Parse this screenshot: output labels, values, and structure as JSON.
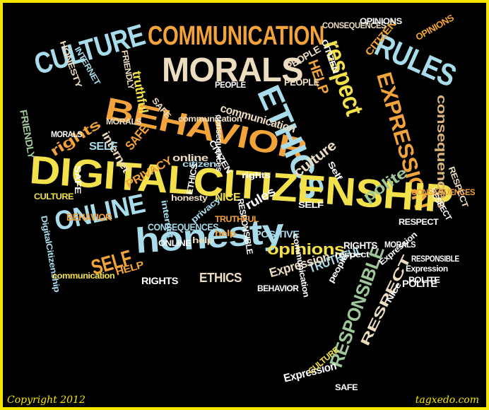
{
  "colors": {
    "background": "#000000",
    "border": "#f5e600",
    "yellow": "#f2e14a",
    "orange": "#f2a33a",
    "cream": "#ecdcc0",
    "lightblue": "#a8dcea",
    "green": "#9fc89a",
    "tan": "#d9b47a",
    "white": "#ffffff"
  },
  "footer": {
    "copyright": "Copyright 2012",
    "site": "tagxedo.com"
  },
  "words": [
    {
      "text": "COMMUNICATION",
      "color": "orange"
    },
    {
      "text": "CULTURE",
      "color": "lightblue"
    },
    {
      "text": "MORALS",
      "color": "cream"
    },
    {
      "text": "RULES",
      "color": "lightblue"
    },
    {
      "text": "respect",
      "color": "yellow"
    },
    {
      "text": "BEHAVIOR",
      "color": "orange"
    },
    {
      "text": "ETHICS",
      "color": "lightblue"
    },
    {
      "text": "EXPRESSION",
      "color": "orange"
    },
    {
      "text": "DIGITALCITIZENSHIP",
      "color": "yellow"
    },
    {
      "text": "ONLINE",
      "color": "lightblue"
    },
    {
      "text": "honesty",
      "color": "lightblue"
    },
    {
      "text": "SELF",
      "color": "orange"
    },
    {
      "text": "RESPONSIBLE",
      "color": "green"
    },
    {
      "text": "RESPECT",
      "color": "cream"
    },
    {
      "text": "rights",
      "color": "orange"
    },
    {
      "text": "culture",
      "color": "cream"
    },
    {
      "text": "polite",
      "color": "green"
    },
    {
      "text": "consequences",
      "color": "tan"
    },
    {
      "text": "opinions",
      "color": "yellow"
    },
    {
      "text": "communication",
      "color": "cream"
    },
    {
      "text": "HELP",
      "color": "orange"
    },
    {
      "text": "PEOPLE",
      "color": "cream"
    },
    {
      "text": "CITIZEN",
      "color": "orange"
    },
    {
      "text": "CONSEQUENCES",
      "color": "lightblue"
    },
    {
      "text": "PRIVACY",
      "color": "orange"
    },
    {
      "text": "ETHICS",
      "color": "cream"
    },
    {
      "text": "RIGHTS",
      "color": "white"
    },
    {
      "text": "NICE",
      "color": "yellow"
    },
    {
      "text": "internet",
      "color": "cream"
    },
    {
      "text": "SAFE",
      "color": "orange"
    },
    {
      "text": "online",
      "color": "cream"
    },
    {
      "text": "POSITIVE",
      "color": "lightblue"
    },
    {
      "text": "TRUTHFUL",
      "color": "lightblue"
    },
    {
      "text": "Expression",
      "color": "cream"
    },
    {
      "text": "FRIENDLY",
      "color": "green"
    },
    {
      "text": "HONESTY",
      "color": "cream"
    },
    {
      "text": "OPINIONS",
      "color": "orange"
    },
    {
      "text": "rules",
      "color": "white"
    },
    {
      "text": "POLITE",
      "color": "white"
    },
    {
      "text": "BEHAVIOR",
      "color": "orange"
    },
    {
      "text": "MORALS",
      "color": "cream"
    },
    {
      "text": "SELF",
      "color": "lightblue"
    },
    {
      "text": "help",
      "color": "cream"
    },
    {
      "text": "INTERNET",
      "color": "lightblue"
    },
    {
      "text": "Expression",
      "color": "white"
    },
    {
      "text": "CULTURE",
      "color": "yellow"
    },
    {
      "text": "PEOPLE",
      "color": "cream"
    },
    {
      "text": "truthful",
      "color": "yellow"
    },
    {
      "text": "CONSEQUENCES",
      "color": "cream"
    },
    {
      "text": "citizen",
      "color": "lightblue"
    },
    {
      "text": "privacy",
      "color": "lightblue"
    },
    {
      "text": "RESPECT",
      "color": "white"
    },
    {
      "text": "DigitalCitizenship",
      "color": "lightblue"
    },
    {
      "text": "communication",
      "color": "yellow"
    },
    {
      "text": "HELP",
      "color": "orange"
    },
    {
      "text": "SAFE",
      "color": "white"
    },
    {
      "text": "CITIZEN",
      "color": "white"
    },
    {
      "text": "OPINIONS",
      "color": "white"
    },
    {
      "text": "FRIENDLY",
      "color": "cream"
    },
    {
      "text": "RESPONSIBLE",
      "color": "white"
    },
    {
      "text": "MORALS",
      "color": "white"
    },
    {
      "text": "ETHICS",
      "color": "white"
    },
    {
      "text": "Expression",
      "color": "white"
    },
    {
      "text": "POLITE",
      "color": "white"
    },
    {
      "text": "RESPECT",
      "color": "cream"
    },
    {
      "text": "respect",
      "color": "white"
    },
    {
      "text": "Self",
      "color": "white"
    },
    {
      "text": "rights",
      "color": "white"
    },
    {
      "text": "SAFE",
      "color": "cream"
    },
    {
      "text": "CULTURE",
      "color": "yellow"
    },
    {
      "text": "honesty",
      "color": "cream"
    },
    {
      "text": "internet",
      "color": "lightblue"
    },
    {
      "text": "ONLINE",
      "color": "white"
    },
    {
      "text": "PEOPLE",
      "color": "white"
    },
    {
      "text": "RESPONSIBLE",
      "color": "white"
    },
    {
      "text": "RIGHTS",
      "color": "white"
    },
    {
      "text": "people",
      "color": "white"
    },
    {
      "text": "TRUTHFUL",
      "color": "orange"
    },
    {
      "text": "help",
      "color": "orange"
    },
    {
      "text": "SELF",
      "color": "white"
    },
    {
      "text": "communication",
      "color": "white"
    },
    {
      "text": "Expression",
      "color": "white"
    },
    {
      "text": "SAFE",
      "color": "white"
    },
    {
      "text": "Nice",
      "color": "white"
    },
    {
      "text": "CONSEQUENCES",
      "color": "orange"
    },
    {
      "text": "BEHAVIOR",
      "color": "white"
    },
    {
      "text": "RESPECT",
      "color": "white"
    },
    {
      "text": "CITIZEN",
      "color": "white"
    },
    {
      "text": "communication",
      "color": "cream"
    },
    {
      "text": "consequences",
      "color": "white"
    },
    {
      "text": "MORALS",
      "color": "white"
    }
  ]
}
